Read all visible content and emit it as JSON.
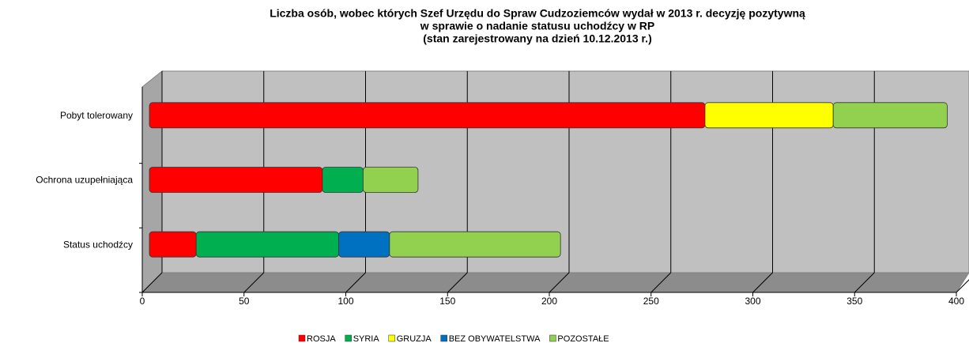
{
  "chart_data": {
    "type": "stacked-bar-horizontal",
    "title": [
      "Liczba osób, wobec których  Szef Urzędu do Spraw Cudzoziemców wydał w 2013 r. decyzję pozytywną",
      "w sprawie o nadanie statusu  uchodźcy w RP",
      "(stan zarejestrowany  na dzień 10.12.2013 r.)"
    ],
    "categories": [
      "Status uchodźcy",
      "Ochrona uzupełniająca",
      "Pobyt tolerowany"
    ],
    "series": [
      {
        "name": "ROSJA",
        "color": "#ff0000",
        "values": [
          23,
          85,
          273
        ]
      },
      {
        "name": "SYRIA",
        "color": "#00b050",
        "values": [
          70,
          20,
          0
        ]
      },
      {
        "name": "GRUZJA",
        "color": "#ffff00",
        "values": [
          0,
          0,
          63
        ]
      },
      {
        "name": "BEZ OBYWATELSTWA",
        "color": "#0070c0",
        "values": [
          25,
          0,
          0
        ]
      },
      {
        "name": "POZOSTAŁE",
        "color": "#92d050",
        "values": [
          84,
          27,
          56
        ]
      }
    ],
    "xlim": [
      0,
      400
    ],
    "xticks": [
      0,
      50,
      100,
      150,
      200,
      250,
      300,
      350,
      400
    ],
    "grid": true,
    "legend": "bottom"
  }
}
